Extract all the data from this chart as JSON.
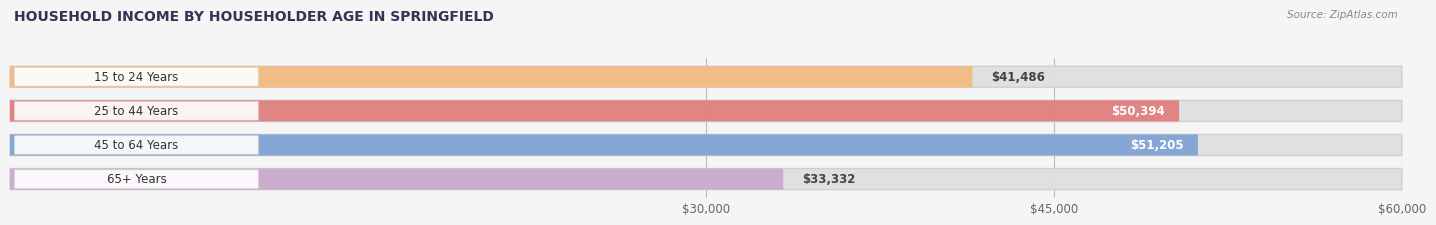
{
  "title": "HOUSEHOLD INCOME BY HOUSEHOLDER AGE IN SPRINGFIELD",
  "source": "Source: ZipAtlas.com",
  "categories": [
    "15 to 24 Years",
    "25 to 44 Years",
    "45 to 64 Years",
    "65+ Years"
  ],
  "values": [
    41486,
    50394,
    51205,
    33332
  ],
  "bar_colors": [
    "#F5B87A",
    "#E07878",
    "#7A9FD4",
    "#C9A8CC"
  ],
  "bar_bg_color": "#E0E0E0",
  "label_bg_color": "#F8F8F8",
  "x_min": 0,
  "x_max": 60000,
  "x_ticks": [
    30000,
    45000,
    60000
  ],
  "x_tick_labels": [
    "$30,000",
    "$45,000",
    "$60,000"
  ],
  "value_labels": [
    "$41,486",
    "$50,394",
    "$51,205",
    "$33,332"
  ],
  "background_color": "#f5f5f5"
}
